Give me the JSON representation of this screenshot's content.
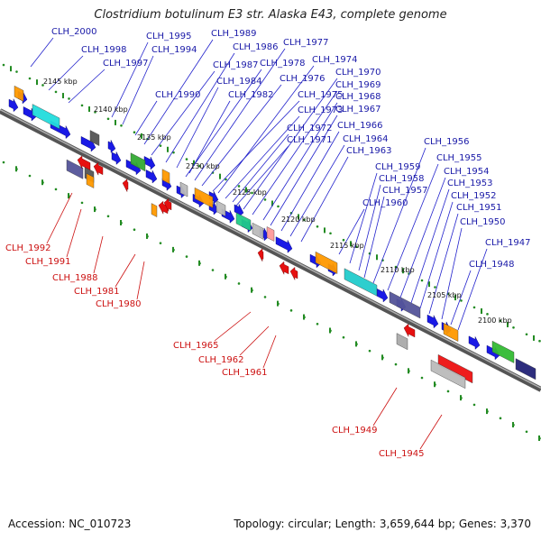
{
  "title": "Clostridium botulinum E3 str. Alaska E43, complete genome",
  "footer": {
    "accession": "Accession: NC_010723",
    "summary": "Topology: circular; Length: 3,659,644 bp; Genes: 3,370"
  },
  "colors": {
    "forward_gene": "#1a1ae6",
    "reverse_gene": "#e61010",
    "forward_label": "#1a1aa8",
    "reverse_label": "#cc1111",
    "tick": "#228b22",
    "backbone": "#777777"
  },
  "kbp_markers": [
    "2145 kbp",
    "2140 kbp",
    "2135 kbp",
    "2130 kbp",
    "2125 kbp",
    "2120 kbp",
    "2115 kbp",
    "2110 kbp",
    "2105 kbp",
    "2100 kbp"
  ],
  "top_labels": [
    "CLH_2000",
    "CLH_1998",
    "CLH_1997",
    "CLH_1995",
    "CLH_1994",
    "CLH_1990",
    "CLH_1989",
    "CLH_1987",
    "CLH_1986",
    "CLH_1984",
    "CLH_1982",
    "CLH_1978",
    "CLH_1977",
    "CLH_1976",
    "CLH_1975",
    "CLH_1974",
    "CLH_1973",
    "CLH_1972",
    "CLH_1971",
    "CLH_1970",
    "CLH_1969",
    "CLH_1968",
    "CLH_1967",
    "CLH_1966",
    "CLH_1964",
    "CLH_1963",
    "CLH_1960",
    "CLH_1959",
    "CLH_1958",
    "CLH_1957",
    "CLH_1956",
    "CLH_1955",
    "CLH_1954",
    "CLH_1953",
    "CLH_1952",
    "CLH_1951",
    "CLH_1950",
    "CLH_1948",
    "CLH_1947"
  ],
  "bottom_labels": [
    "CLH_1992",
    "CLH_1991",
    "CLH_1988",
    "CLH_1981",
    "CLH_1980",
    "CLH_1965",
    "CLH_1962",
    "CLH_1961",
    "CLH_1949",
    "CLH_1945"
  ]
}
